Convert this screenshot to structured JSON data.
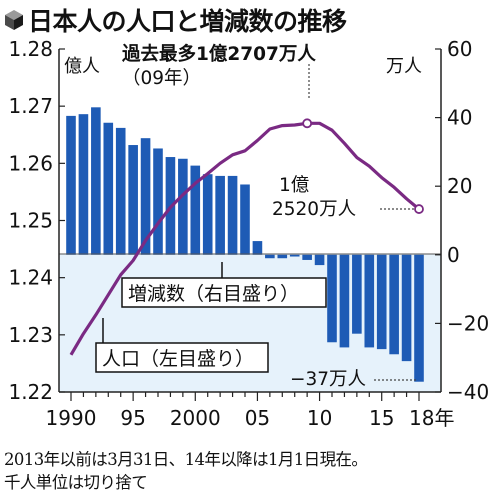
{
  "title": "日本人の人口と増減数の推移",
  "notes": [
    "2013年以前は3月31日、14年以降は1月1日現在。",
    "千人単位は切り捨て"
  ],
  "colors": {
    "bar": "#1e5bb5",
    "line": "#7a2a83",
    "zero_band": "#e6f2fb"
  },
  "chart_data": {
    "type": "bar+line",
    "x": [
      1990,
      1991,
      1992,
      1993,
      1994,
      1995,
      1996,
      1997,
      1998,
      1999,
      2000,
      2001,
      2002,
      2003,
      2004,
      2005,
      2006,
      2007,
      2008,
      2009,
      2010,
      2011,
      2012,
      2013,
      2014,
      2015,
      2016,
      2017,
      2018
    ],
    "x_tick_values": [
      1990,
      1995,
      2000,
      2005,
      2010,
      2015,
      2018
    ],
    "x_tick_labels": [
      "1990",
      "95",
      "2000",
      "05",
      "10",
      "15",
      "18年"
    ],
    "left_axis": {
      "unit": "億人",
      "ylim": [
        1.22,
        1.28
      ],
      "ticks": [
        "1.28",
        "1.27",
        "1.26",
        "1.25",
        "1.24",
        "1.23",
        "1.22"
      ]
    },
    "right_axis": {
      "unit": "万人",
      "ylim": [
        -40,
        60
      ],
      "ticks": [
        "60",
        "40",
        "20",
        "0",
        "−20",
        "−40"
      ]
    },
    "series": [
      {
        "name": "増減数（右目盛り）",
        "type": "bar",
        "axis": "right",
        "values": [
          40.5,
          41,
          43,
          38.5,
          37,
          32,
          34,
          31,
          28.5,
          28,
          26,
          23.5,
          23,
          23,
          20.5,
          4,
          -1,
          -1,
          -0.5,
          -1.5,
          -3,
          -25.5,
          -27,
          -23,
          -27,
          -27.5,
          -29,
          -31,
          -37
        ]
      },
      {
        "name": "人口（左目盛り）",
        "type": "line",
        "axis": "left",
        "values": [
          1.2265,
          1.2302,
          1.2335,
          1.237,
          1.2405,
          1.243,
          1.2465,
          1.2495,
          1.2523,
          1.2545,
          1.2565,
          1.2582,
          1.26,
          1.2615,
          1.2622,
          1.264,
          1.266,
          1.2666,
          1.2667,
          1.267,
          1.267,
          1.2658,
          1.2635,
          1.261,
          1.2595,
          1.2575,
          1.2558,
          1.2538,
          1.252
        ]
      }
    ],
    "annotations": {
      "peak": [
        "過去最多1億2707万人",
        "（09年）"
      ],
      "latest": [
        "1億",
        "2520万人"
      ],
      "min_bar": "−37万人"
    }
  }
}
